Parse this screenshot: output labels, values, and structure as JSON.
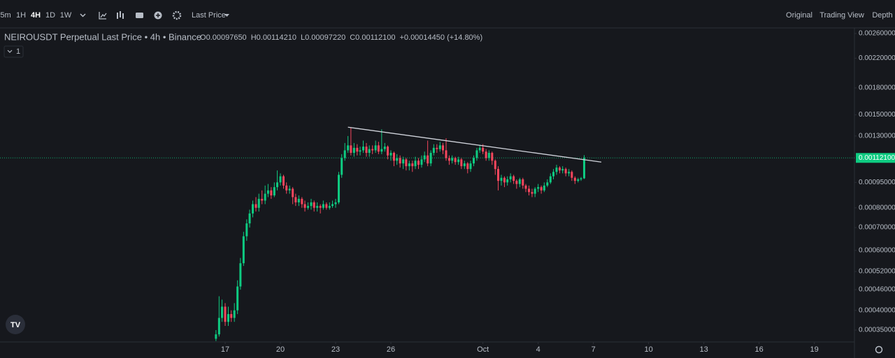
{
  "toolbar": {
    "intervals": [
      "5m",
      "1H",
      "4H",
      "1D",
      "1W"
    ],
    "price_type": "Last Price",
    "views": [
      "Original",
      "Trading View",
      "Depth"
    ]
  },
  "chart_data": {
    "type": "candlestick",
    "title": "NEIROUSDT Perpetual Last Price • 4h • Binance",
    "ohlc": [
      {
        "label": "O",
        "text": "0.00097650"
      },
      {
        "label": "H",
        "text": "0.00114210"
      },
      {
        "label": "L",
        "text": "0.00097220"
      },
      {
        "label": "C",
        "text": "0.00112100"
      }
    ],
    "change": "+0.00014450 (+14.80%)",
    "indicator_count": 1,
    "log_scale": true,
    "grid": false,
    "up_color": "#0ecb81",
    "down_color": "#f6465d",
    "x": [
      16.5,
      16.67,
      16.83,
      17,
      17.17,
      17.33,
      17.5,
      17.67,
      17.83,
      18,
      18.17,
      18.33,
      18.5,
      18.67,
      18.83,
      19,
      19.17,
      19.33,
      19.5,
      19.67,
      19.83,
      20,
      20.17,
      20.33,
      20.5,
      20.67,
      20.83,
      21,
      21.17,
      21.33,
      21.5,
      21.67,
      21.83,
      22,
      22.17,
      22.33,
      22.5,
      22.67,
      22.83,
      23,
      23.17,
      23.33,
      23.5,
      23.67,
      23.83,
      24,
      24.17,
      24.33,
      24.5,
      24.67,
      24.83,
      25,
      25.17,
      25.33,
      25.5,
      25.67,
      25.83,
      26,
      26.17,
      26.33,
      26.5,
      26.67,
      26.83,
      27,
      27.17,
      27.33,
      27.5,
      27.67,
      27.83,
      28,
      28.17,
      28.33,
      28.5,
      28.67,
      28.83,
      29,
      29.17,
      29.33,
      29.5,
      29.67,
      29.83,
      30,
      30.17,
      30.33,
      30.5,
      30.67,
      30.83,
      31,
      31.17,
      31.33,
      31.5,
      31.67,
      31.83,
      32,
      32.17,
      32.33,
      32.5,
      32.67,
      32.83,
      33,
      33.17,
      33.33,
      33.5,
      33.67,
      33.83,
      34,
      34.17,
      34.33,
      34.5,
      34.67,
      34.83,
      35,
      35.17,
      35.33,
      35.5,
      35.67,
      35.83,
      36,
      36.17,
      36.33,
      36.5
    ],
    "open": [
      0.00033,
      0.00034,
      0.00038,
      0.00041,
      0.00037,
      0.00039,
      0.00038,
      0.0004,
      0.00047,
      0.00055,
      0.00066,
      0.00072,
      0.00077,
      0.00082,
      0.0008,
      0.00085,
      0.00084,
      0.00088,
      0.0009,
      0.00087,
      0.00092,
      0.00095,
      0.00099,
      0.00093,
      0.0009,
      0.00091,
      0.00086,
      0.00083,
      0.00085,
      0.00082,
      0.0008,
      0.00081,
      0.00083,
      0.0008,
      0.00081,
      0.0008,
      0.00082,
      0.0008,
      0.00081,
      0.00082,
      0.00083,
      0.001,
      0.00112,
      0.00118,
      0.00122,
      0.00116,
      0.0012,
      0.00117,
      0.00118,
      0.00121,
      0.00116,
      0.00119,
      0.00118,
      0.00122,
      0.00117,
      0.00119,
      0.00121,
      0.00114,
      0.00116,
      0.0011,
      0.00112,
      0.00108,
      0.00111,
      0.00106,
      0.00108,
      0.00106,
      0.0011,
      0.00107,
      0.00111,
      0.00114,
      0.00108,
      0.00116,
      0.0012,
      0.00119,
      0.00122,
      0.00118,
      0.00112,
      0.0011,
      0.00112,
      0.00109,
      0.00111,
      0.00106,
      0.00108,
      0.00104,
      0.00108,
      0.00112,
      0.00118,
      0.0012,
      0.00117,
      0.00112,
      0.00116,
      0.0011,
      0.00104,
      0.00096,
      0.00098,
      0.00095,
      0.00097,
      0.00099,
      0.00096,
      0.00094,
      0.00097,
      0.00093,
      0.00091,
      0.00089,
      0.00088,
      0.00091,
      0.00092,
      0.0009,
      0.00093,
      0.00095,
      0.00099,
      0.00102,
      0.00105,
      0.00103,
      0.00104,
      0.00101,
      0.00102,
      0.00098,
      0.00096,
      0.00097,
      0.0009765
    ],
    "high": [
      0.00035,
      0.00044,
      0.00043,
      0.00042,
      0.00041,
      0.0004,
      0.00042,
      0.00049,
      0.00057,
      0.00068,
      0.00074,
      0.00079,
      0.00084,
      0.00086,
      0.00088,
      0.0009,
      0.00093,
      0.00094,
      0.00092,
      0.00095,
      0.00103,
      0.00101,
      0.001,
      0.00095,
      0.00093,
      0.00092,
      0.00088,
      0.00087,
      0.00086,
      0.00084,
      0.00083,
      0.00085,
      0.00084,
      0.00083,
      0.00082,
      0.00084,
      0.00083,
      0.00083,
      0.00084,
      0.00085,
      0.00102,
      0.00115,
      0.00124,
      0.0013,
      0.00138,
      0.00124,
      0.00123,
      0.00121,
      0.00126,
      0.00124,
      0.00122,
      0.00122,
      0.00126,
      0.00125,
      0.00136,
      0.00124,
      0.00122,
      0.00118,
      0.00117,
      0.00115,
      0.00114,
      0.00113,
      0.00112,
      0.0011,
      0.0011,
      0.00113,
      0.00112,
      0.00114,
      0.00117,
      0.00126,
      0.00118,
      0.00123,
      0.00123,
      0.00125,
      0.00124,
      0.00128,
      0.00114,
      0.00114,
      0.00113,
      0.00113,
      0.00112,
      0.0011,
      0.00109,
      0.0011,
      0.00114,
      0.0012,
      0.00122,
      0.00123,
      0.00119,
      0.00118,
      0.00117,
      0.00111,
      0.00106,
      0.001,
      0.00099,
      0.00099,
      0.00101,
      0.001,
      0.00097,
      0.00098,
      0.00098,
      0.00094,
      0.00093,
      0.00091,
      0.00092,
      0.00094,
      0.00093,
      0.00095,
      0.00097,
      0.00101,
      0.00104,
      0.00107,
      0.00106,
      0.00106,
      0.00105,
      0.00104,
      0.00103,
      0.00099,
      0.00098,
      0.000985,
      0.0011421
    ],
    "low": [
      0.000325,
      0.000335,
      0.00037,
      0.00036,
      0.00036,
      0.00037,
      0.00037,
      0.00039,
      0.00046,
      0.00054,
      0.00064,
      0.0007,
      0.00075,
      0.00078,
      0.00078,
      0.00082,
      0.00082,
      0.00086,
      0.00085,
      0.00086,
      0.0009,
      0.00093,
      0.00091,
      0.00088,
      0.00088,
      0.00082,
      0.00081,
      0.00081,
      0.0008,
      0.00078,
      0.00079,
      0.00079,
      0.00078,
      0.00078,
      0.00077,
      0.00079,
      0.00079,
      0.00079,
      0.0008,
      0.0008,
      0.00082,
      0.00098,
      0.0011,
      0.00116,
      0.00114,
      0.00113,
      0.00114,
      0.00114,
      0.00116,
      0.00113,
      0.00113,
      0.00115,
      0.00116,
      0.00115,
      0.00115,
      0.00117,
      0.00111,
      0.0011,
      0.00106,
      0.00107,
      0.00105,
      0.00104,
      0.00103,
      0.00103,
      0.00102,
      0.00104,
      0.00104,
      0.00105,
      0.00109,
      0.00106,
      0.00106,
      0.00114,
      0.00116,
      0.00117,
      0.00115,
      0.0011,
      0.00107,
      0.00108,
      0.00107,
      0.00107,
      0.00104,
      0.00104,
      0.00101,
      0.00102,
      0.00106,
      0.0011,
      0.00116,
      0.00115,
      0.0011,
      0.0011,
      0.00107,
      0.001,
      0.0009,
      0.00093,
      0.00092,
      0.00093,
      0.00095,
      0.00094,
      0.00091,
      0.00092,
      0.00091,
      0.00089,
      0.00087,
      0.00086,
      0.00086,
      0.00089,
      0.00088,
      0.00089,
      0.00092,
      0.00094,
      0.00097,
      0.001,
      0.00101,
      0.00101,
      0.00099,
      0.00099,
      0.00096,
      0.00094,
      0.00095,
      0.00096,
      0.0009722
    ],
    "close": [
      0.00034,
      0.00038,
      0.00041,
      0.00037,
      0.00039,
      0.00038,
      0.0004,
      0.00047,
      0.00055,
      0.00066,
      0.00072,
      0.00077,
      0.00082,
      0.0008,
      0.00085,
      0.00084,
      0.00088,
      0.0009,
      0.00087,
      0.00092,
      0.00095,
      0.00099,
      0.00093,
      0.0009,
      0.00091,
      0.00086,
      0.00083,
      0.00085,
      0.00082,
      0.0008,
      0.00081,
      0.00083,
      0.0008,
      0.00081,
      0.0008,
      0.00082,
      0.0008,
      0.00081,
      0.00082,
      0.00083,
      0.001,
      0.00112,
      0.00118,
      0.00122,
      0.00116,
      0.0012,
      0.00117,
      0.00118,
      0.00121,
      0.00116,
      0.00119,
      0.00118,
      0.00122,
      0.00117,
      0.00119,
      0.00121,
      0.00114,
      0.00116,
      0.0011,
      0.00112,
      0.00108,
      0.00111,
      0.00106,
      0.00108,
      0.00106,
      0.0011,
      0.00107,
      0.00111,
      0.00114,
      0.00108,
      0.00116,
      0.0012,
      0.00119,
      0.00122,
      0.00118,
      0.00112,
      0.0011,
      0.00112,
      0.00109,
      0.00111,
      0.00106,
      0.00108,
      0.00104,
      0.00108,
      0.00112,
      0.00118,
      0.0012,
      0.00117,
      0.00112,
      0.00116,
      0.0011,
      0.00104,
      0.00096,
      0.00098,
      0.00095,
      0.00097,
      0.00099,
      0.00096,
      0.00094,
      0.00097,
      0.00093,
      0.00091,
      0.00089,
      0.00088,
      0.00091,
      0.00092,
      0.0009,
      0.00093,
      0.00095,
      0.00099,
      0.00102,
      0.00105,
      0.00103,
      0.00104,
      0.00101,
      0.00102,
      0.00098,
      0.00096,
      0.00097,
      0.0009765,
      0.001121
    ],
    "trendline": {
      "x": [
        23.67,
        37.43
      ],
      "y": [
        0.00138,
        0.00109
      ]
    },
    "last_price": {
      "value": 0.001121,
      "label": "0.00112100"
    },
    "xlim": [
      4.77,
      51.18
    ],
    "xticks": [
      17,
      20,
      23,
      26,
      {
        "value": 31,
        "label": "Oct"
      },
      {
        "value": 34,
        "label": "4"
      },
      {
        "value": 37,
        "label": "7"
      },
      {
        "value": 40,
        "label": "10"
      },
      {
        "value": 43,
        "label": "13"
      },
      {
        "value": 46,
        "label": "16"
      },
      {
        "value": 49,
        "label": "19"
      }
    ],
    "ylim": [
      0.000323,
      0.0027
    ],
    "yticks": [
      {
        "value": 0.0026,
        "label": "0.00260000"
      },
      {
        "value": 0.0022,
        "label": "0.00220000"
      },
      {
        "value": 0.0018,
        "label": "0.00180000"
      },
      {
        "value": 0.0015,
        "label": "0.00150000"
      },
      {
        "value": 0.0013,
        "label": "0.00130000"
      },
      {
        "value": 0.00095,
        "label": "0.00095000"
      },
      {
        "value": 0.0008,
        "label": "0.00080000"
      },
      {
        "value": 0.0007,
        "label": "0.00070000"
      },
      {
        "value": 0.0006,
        "label": "0.00060000"
      },
      {
        "value": 0.00052,
        "label": "0.00052000"
      },
      {
        "value": 0.00046,
        "label": "0.00046000"
      },
      {
        "value": 0.0004,
        "label": "0.00040000"
      },
      {
        "value": 0.00035,
        "label": "0.00035000"
      }
    ]
  }
}
